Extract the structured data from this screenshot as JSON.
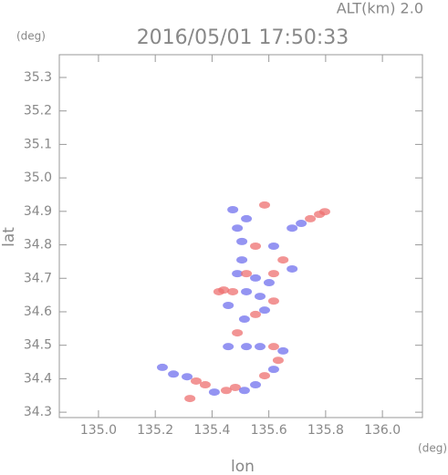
{
  "chart_data": {
    "type": "scatter",
    "title": "2016/05/01 17:50:33",
    "subtitle": "ALT(km)  2.0",
    "y_unit": "(deg)",
    "x_unit": "(deg)",
    "x_label": "lon",
    "y_label": "lat",
    "xlim": [
      134.862,
      136.141
    ],
    "ylim": [
      34.284,
      35.368
    ],
    "xticks": [
      {
        "value": 135,
        "label": "135.0"
      },
      135.2,
      135.4,
      135.6,
      135.8,
      {
        "value": 136,
        "label": "136.0"
      }
    ],
    "yticks": [
      34.3,
      34.4,
      34.5,
      34.6,
      34.7,
      34.8,
      34.9,
      {
        "value": 35,
        "label": "35.0"
      },
      35.1,
      35.2,
      35.3
    ],
    "x": [
      135.225,
      135.264,
      135.312,
      135.344,
      135.376,
      135.408,
      135.45,
      135.482,
      135.514,
      135.553,
      135.585,
      135.617,
      135.633,
      135.65,
      135.617,
      135.569,
      135.521,
      135.489,
      135.514,
      135.553,
      135.585,
      135.617,
      135.569,
      135.521,
      135.473,
      135.441,
      135.457,
      135.489,
      135.521,
      135.553,
      135.601,
      135.617,
      135.505,
      135.553,
      135.617,
      135.65,
      135.682,
      135.682,
      135.714,
      135.746,
      135.778,
      135.797,
      135.489,
      135.505,
      135.473,
      135.585,
      135.521,
      135.424,
      135.322,
      135.457
    ],
    "y": [
      34.434,
      34.414,
      34.406,
      34.393,
      34.382,
      34.36,
      34.365,
      34.374,
      34.365,
      34.382,
      34.409,
      34.428,
      34.455,
      34.483,
      34.496,
      34.496,
      34.496,
      34.537,
      34.578,
      34.592,
      34.605,
      34.632,
      34.646,
      34.66,
      34.66,
      34.665,
      34.619,
      34.714,
      34.714,
      34.701,
      34.687,
      34.714,
      34.755,
      34.796,
      34.796,
      34.755,
      34.728,
      34.85,
      34.864,
      34.878,
      34.891,
      34.899,
      34.85,
      34.81,
      34.905,
      34.919,
      34.878,
      34.66,
      34.341,
      34.496
    ],
    "colors": [
      "#7070ee",
      "#7070ee",
      "#7070ee",
      "#ee7070",
      "#ee7070",
      "#7070ee",
      "#ee7070",
      "#ee7070",
      "#7070ee",
      "#7070ee",
      "#ee7070",
      "#7070ee",
      "#ee7070",
      "#7070ee",
      "#ee7070",
      "#7070ee",
      "#7070ee",
      "#ee7070",
      "#7070ee",
      "#ee7070",
      "#7070ee",
      "#ee7070",
      "#7070ee",
      "#7070ee",
      "#ee7070",
      "#ee7070",
      "#7070ee",
      "#7070ee",
      "#ee7070",
      "#7070ee",
      "#7070ee",
      "#ee7070",
      "#7070ee",
      "#ee7070",
      "#7070ee",
      "#ee7070",
      "#7070ee",
      "#7070ee",
      "#7070ee",
      "#ee7070",
      "#ee7070",
      "#ee7070",
      "#7070ee",
      "#7070ee",
      "#7070ee",
      "#ee7070",
      "#7070ee",
      "#ee7070",
      "#ee7070",
      "#7070ee"
    ]
  }
}
